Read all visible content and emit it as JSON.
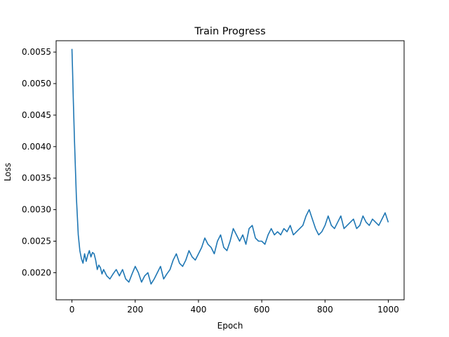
{
  "chart_data": {
    "type": "line",
    "title": "Train Progress",
    "xlabel": "Epoch",
    "ylabel": "Loss",
    "xlim": [
      -50,
      1050
    ],
    "ylim": [
      0.00157,
      0.00568
    ],
    "x_ticks": [
      0,
      200,
      400,
      600,
      800,
      1000
    ],
    "y_ticks": [
      0.002,
      0.0025,
      0.003,
      0.0035,
      0.004,
      0.0045,
      0.005,
      0.0055
    ],
    "x_tick_labels": [
      "0",
      "200",
      "400",
      "600",
      "800",
      "1000"
    ],
    "y_tick_labels": [
      "0.0020",
      "0.0025",
      "0.0030",
      "0.0035",
      "0.0040",
      "0.0045",
      "0.0050",
      "0.0055"
    ],
    "grid": false,
    "series_color": "#1f77b4",
    "series": [
      {
        "x": [
          0,
          2,
          4,
          6,
          8,
          10,
          12,
          14,
          16,
          18,
          20,
          25,
          30,
          35,
          40,
          45,
          50,
          55,
          60,
          65,
          70,
          75,
          80,
          85,
          90,
          95,
          100,
          110,
          120,
          130,
          140,
          150,
          160,
          170,
          180,
          190,
          200,
          210,
          220,
          230,
          240,
          250,
          260,
          270,
          280,
          290,
          300,
          310,
          320,
          330,
          340,
          350,
          360,
          370,
          380,
          390,
          400,
          410,
          420,
          430,
          440,
          450,
          460,
          470,
          480,
          490,
          500,
          510,
          520,
          530,
          540,
          550,
          560,
          570,
          580,
          590,
          600,
          610,
          620,
          630,
          640,
          650,
          660,
          670,
          680,
          690,
          700,
          710,
          720,
          730,
          740,
          750,
          760,
          770,
          780,
          790,
          800,
          810,
          820,
          830,
          840,
          850,
          860,
          870,
          880,
          890,
          900,
          910,
          920,
          930,
          940,
          950,
          960,
          970,
          980,
          990,
          1000
        ],
        "y": [
          0.00555,
          0.0052,
          0.0048,
          0.00445,
          0.0041,
          0.0038,
          0.0035,
          0.0032,
          0.003,
          0.0028,
          0.0026,
          0.00235,
          0.00222,
          0.00215,
          0.0023,
          0.00218,
          0.00228,
          0.00235,
          0.00225,
          0.00232,
          0.0023,
          0.0022,
          0.00205,
          0.00212,
          0.00208,
          0.00198,
          0.00205,
          0.00195,
          0.0019,
          0.00198,
          0.00205,
          0.00195,
          0.00205,
          0.0019,
          0.00185,
          0.00198,
          0.0021,
          0.002,
          0.00185,
          0.00195,
          0.002,
          0.00182,
          0.0019,
          0.002,
          0.0021,
          0.0019,
          0.00198,
          0.00205,
          0.0022,
          0.0023,
          0.00215,
          0.0021,
          0.0022,
          0.00235,
          0.00225,
          0.0022,
          0.0023,
          0.0024,
          0.00255,
          0.00245,
          0.0024,
          0.0023,
          0.0025,
          0.0026,
          0.0024,
          0.00235,
          0.0025,
          0.0027,
          0.0026,
          0.0025,
          0.0026,
          0.00245,
          0.0027,
          0.00275,
          0.00255,
          0.0025,
          0.0025,
          0.00245,
          0.0026,
          0.0027,
          0.0026,
          0.00265,
          0.0026,
          0.0027,
          0.00265,
          0.00275,
          0.0026,
          0.00265,
          0.0027,
          0.00275,
          0.0029,
          0.003,
          0.00285,
          0.0027,
          0.0026,
          0.00265,
          0.00275,
          0.0029,
          0.00275,
          0.0027,
          0.0028,
          0.0029,
          0.0027,
          0.00275,
          0.0028,
          0.00285,
          0.0027,
          0.00275,
          0.0029,
          0.0028,
          0.00275,
          0.00285,
          0.0028,
          0.00275,
          0.00285,
          0.00295,
          0.0028
        ]
      }
    ]
  }
}
